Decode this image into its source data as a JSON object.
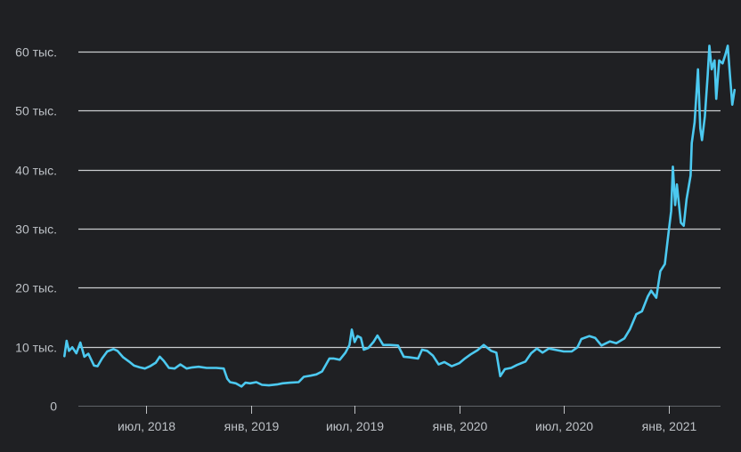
{
  "colors": {
    "background": "#1f2023",
    "grid": "#e8eaed",
    "tick_text": "#bdc1c6",
    "series": "#4cc9f0"
  },
  "chart_data": {
    "type": "line",
    "title": "",
    "xlabel": "",
    "ylabel": "",
    "grid": true,
    "ylim": [
      0,
      62000
    ],
    "xlim": [
      "2018-02-08",
      "2021-04-26"
    ],
    "y_ticks": [
      {
        "value": 0,
        "label": "0"
      },
      {
        "value": 10000,
        "label": "10 тыс."
      },
      {
        "value": 20000,
        "label": "20 тыс."
      },
      {
        "value": 30000,
        "label": "30 тыс."
      },
      {
        "value": 40000,
        "label": "40 тыс."
      },
      {
        "value": 50000,
        "label": "50 тыс."
      },
      {
        "value": 60000,
        "label": "60 тыс."
      }
    ],
    "x_ticks": [
      {
        "date": "2018-07-01",
        "label": "июл, 2018"
      },
      {
        "date": "2019-01-01",
        "label": "янв, 2019"
      },
      {
        "date": "2019-07-01",
        "label": "июл, 2019"
      },
      {
        "date": "2020-01-01",
        "label": "янв, 2020"
      },
      {
        "date": "2020-07-01",
        "label": "июл, 2020"
      },
      {
        "date": "2021-01-01",
        "label": "янв, 2021"
      }
    ],
    "series": [
      {
        "points": [
          [
            "2018-02-08",
            8400
          ],
          [
            "2018-02-12",
            11000
          ],
          [
            "2018-02-16",
            9300
          ],
          [
            "2018-02-22",
            9900
          ],
          [
            "2018-03-01",
            8900
          ],
          [
            "2018-03-08",
            10700
          ],
          [
            "2018-03-15",
            8300
          ],
          [
            "2018-03-22",
            8800
          ],
          [
            "2018-04-01",
            6800
          ],
          [
            "2018-04-07",
            6700
          ],
          [
            "2018-04-15",
            8000
          ],
          [
            "2018-04-24",
            9200
          ],
          [
            "2018-05-05",
            9600
          ],
          [
            "2018-05-12",
            9300
          ],
          [
            "2018-05-22",
            8200
          ],
          [
            "2018-06-01",
            7500
          ],
          [
            "2018-06-10",
            6800
          ],
          [
            "2018-06-20",
            6500
          ],
          [
            "2018-06-29",
            6300
          ],
          [
            "2018-07-08",
            6700
          ],
          [
            "2018-07-18",
            7300
          ],
          [
            "2018-07-25",
            8300
          ],
          [
            "2018-08-01",
            7600
          ],
          [
            "2018-08-10",
            6400
          ],
          [
            "2018-08-20",
            6300
          ],
          [
            "2018-08-30",
            7000
          ],
          [
            "2018-09-10",
            6300
          ],
          [
            "2018-09-20",
            6500
          ],
          [
            "2018-10-01",
            6600
          ],
          [
            "2018-10-15",
            6400
          ],
          [
            "2018-11-01",
            6400
          ],
          [
            "2018-11-14",
            6300
          ],
          [
            "2018-11-20",
            4600
          ],
          [
            "2018-11-25",
            4000
          ],
          [
            "2018-12-05",
            3800
          ],
          [
            "2018-12-15",
            3250
          ],
          [
            "2018-12-22",
            3900
          ],
          [
            "2018-12-30",
            3800
          ],
          [
            "2019-01-10",
            4000
          ],
          [
            "2019-01-20",
            3550
          ],
          [
            "2019-02-01",
            3450
          ],
          [
            "2019-02-15",
            3600
          ],
          [
            "2019-02-25",
            3800
          ],
          [
            "2019-03-10",
            3900
          ],
          [
            "2019-03-25",
            4000
          ],
          [
            "2019-04-03",
            4900
          ],
          [
            "2019-04-15",
            5100
          ],
          [
            "2019-04-25",
            5300
          ],
          [
            "2019-05-05",
            5800
          ],
          [
            "2019-05-12",
            7000
          ],
          [
            "2019-05-18",
            8000
          ],
          [
            "2019-05-25",
            8000
          ],
          [
            "2019-06-05",
            7800
          ],
          [
            "2019-06-15",
            9000
          ],
          [
            "2019-06-22",
            10300
          ],
          [
            "2019-06-26",
            12900
          ],
          [
            "2019-07-01",
            10800
          ],
          [
            "2019-07-06",
            11800
          ],
          [
            "2019-07-12",
            11500
          ],
          [
            "2019-07-17",
            9500
          ],
          [
            "2019-07-25",
            9800
          ],
          [
            "2019-08-03",
            10800
          ],
          [
            "2019-08-10",
            11900
          ],
          [
            "2019-08-20",
            10300
          ],
          [
            "2019-09-01",
            10300
          ],
          [
            "2019-09-15",
            10200
          ],
          [
            "2019-09-25",
            8300
          ],
          [
            "2019-10-05",
            8200
          ],
          [
            "2019-10-20",
            8000
          ],
          [
            "2019-10-27",
            9500
          ],
          [
            "2019-11-05",
            9300
          ],
          [
            "2019-11-15",
            8500
          ],
          [
            "2019-11-25",
            7000
          ],
          [
            "2019-12-05",
            7400
          ],
          [
            "2019-12-18",
            6700
          ],
          [
            "2019-12-31",
            7200
          ],
          [
            "2020-01-10",
            8000
          ],
          [
            "2020-01-20",
            8700
          ],
          [
            "2020-02-01",
            9400
          ],
          [
            "2020-02-12",
            10300
          ],
          [
            "2020-02-25",
            9300
          ],
          [
            "2020-03-05",
            9000
          ],
          [
            "2020-03-12",
            5000
          ],
          [
            "2020-03-20",
            6200
          ],
          [
            "2020-03-31",
            6400
          ],
          [
            "2020-04-10",
            6900
          ],
          [
            "2020-04-25",
            7500
          ],
          [
            "2020-05-05",
            8900
          ],
          [
            "2020-05-15",
            9700
          ],
          [
            "2020-05-25",
            9000
          ],
          [
            "2020-06-05",
            9700
          ],
          [
            "2020-06-20",
            9400
          ],
          [
            "2020-07-01",
            9200
          ],
          [
            "2020-07-15",
            9200
          ],
          [
            "2020-07-25",
            9900
          ],
          [
            "2020-08-01",
            11300
          ],
          [
            "2020-08-15",
            11800
          ],
          [
            "2020-08-25",
            11500
          ],
          [
            "2020-09-05",
            10200
          ],
          [
            "2020-09-20",
            10900
          ],
          [
            "2020-10-01",
            10600
          ],
          [
            "2020-10-15",
            11400
          ],
          [
            "2020-10-25",
            13000
          ],
          [
            "2020-11-05",
            15500
          ],
          [
            "2020-11-15",
            16000
          ],
          [
            "2020-11-25",
            18500
          ],
          [
            "2020-12-01",
            19500
          ],
          [
            "2020-12-10",
            18300
          ],
          [
            "2020-12-17",
            22800
          ],
          [
            "2020-12-25",
            24000
          ],
          [
            "2020-12-31",
            29000
          ],
          [
            "2021-01-05",
            33000
          ],
          [
            "2021-01-08",
            40500
          ],
          [
            "2021-01-12",
            34000
          ],
          [
            "2021-01-15",
            37500
          ],
          [
            "2021-01-22",
            31000
          ],
          [
            "2021-01-27",
            30500
          ],
          [
            "2021-02-01",
            35000
          ],
          [
            "2021-02-08",
            39000
          ],
          [
            "2021-02-10",
            44500
          ],
          [
            "2021-02-15",
            48000
          ],
          [
            "2021-02-21",
            57000
          ],
          [
            "2021-02-25",
            47000
          ],
          [
            "2021-02-28",
            45000
          ],
          [
            "2021-03-05",
            49000
          ],
          [
            "2021-03-10",
            56000
          ],
          [
            "2021-03-13",
            61000
          ],
          [
            "2021-03-17",
            57000
          ],
          [
            "2021-03-22",
            58500
          ],
          [
            "2021-03-25",
            52000
          ],
          [
            "2021-03-30",
            58500
          ],
          [
            "2021-04-05",
            58000
          ],
          [
            "2021-04-10",
            59500
          ],
          [
            "2021-04-14",
            61000
          ],
          [
            "2021-04-18",
            56000
          ],
          [
            "2021-04-22",
            51000
          ],
          [
            "2021-04-26",
            53500
          ]
        ]
      }
    ]
  }
}
